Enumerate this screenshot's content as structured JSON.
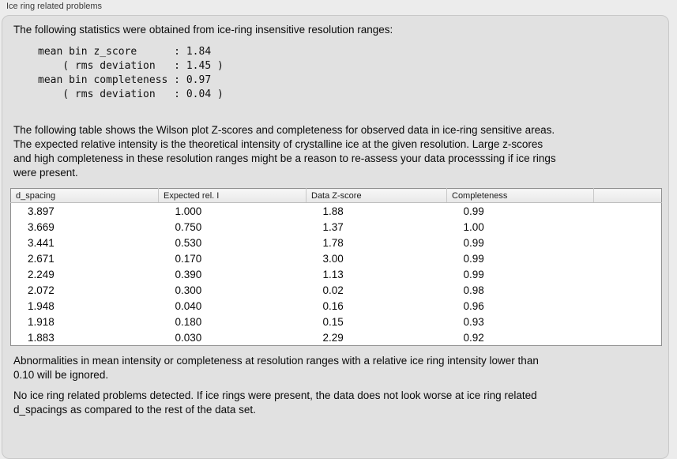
{
  "panel": {
    "title": "Ice ring related problems"
  },
  "intro": "The following statistics were obtained from ice-ring insensitive resolution ranges:",
  "stats_block": "mean bin z_score      : 1.84\n    ( rms deviation   : 1.45 )\nmean bin completeness : 0.97\n    ( rms deviation   : 0.04 )",
  "description": "The following table shows the Wilson plot Z-scores and completeness for observed data in ice-ring sensitive areas.\nThe expected relative intensity is the theoretical intensity of crystalline ice at the given resolution. Large z-scores\nand high completeness in these resolution ranges might be a reason to re-assess your data processsing if ice rings\nwere present.",
  "table": {
    "columns": [
      "d_spacing",
      "Expected rel. I",
      "Data Z-score",
      "Completeness",
      ""
    ],
    "rows": [
      [
        "3.897",
        "1.000",
        "1.88",
        "0.99"
      ],
      [
        "3.669",
        "0.750",
        "1.37",
        "1.00"
      ],
      [
        "3.441",
        "0.530",
        "1.78",
        "0.99"
      ],
      [
        "2.671",
        "0.170",
        "3.00",
        "0.99"
      ],
      [
        "2.249",
        "0.390",
        "1.13",
        "0.99"
      ],
      [
        "2.072",
        "0.300",
        "0.02",
        "0.98"
      ],
      [
        "1.948",
        "0.040",
        "0.16",
        "0.96"
      ],
      [
        "1.918",
        "0.180",
        "0.15",
        "0.93"
      ],
      [
        "1.883",
        "0.030",
        "2.29",
        "0.92"
      ]
    ]
  },
  "notes": {
    "ignore_note": "Abnormalities in mean intensity or completeness at resolution ranges with a relative ice ring intensity lower than\n0.10 will be ignored.",
    "conclusion": "No ice ring related problems detected. If ice rings were present, the data does not look worse at ice ring related\nd_spacings as compared to the rest of the data set."
  },
  "colors": {
    "outer_background": "#ececec",
    "panel_background": "#e1e1e1",
    "panel_border": "#c8c8c8",
    "table_background": "#ffffff",
    "table_border": "#8f8f8f",
    "header_background": "#ededed",
    "text": "#0a0a0a"
  }
}
